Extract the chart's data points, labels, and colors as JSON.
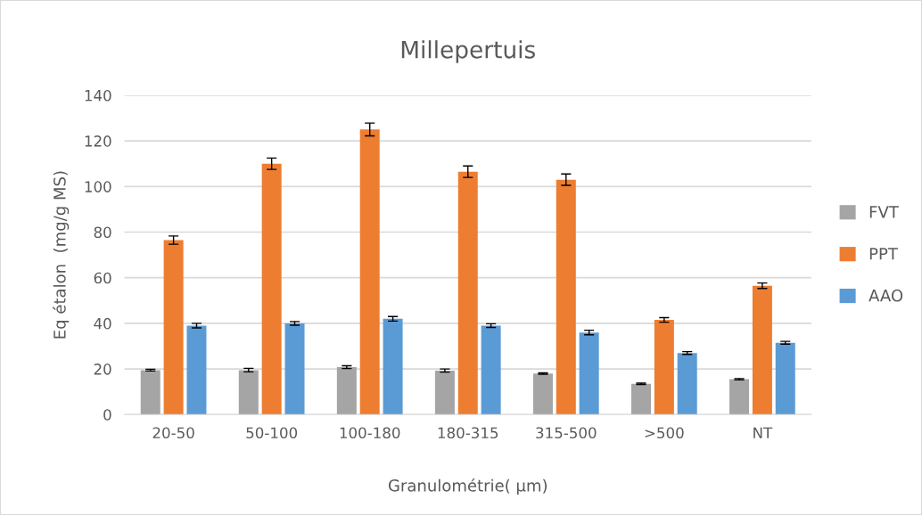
{
  "chart_data": {
    "type": "bar",
    "title": "Millepertuis",
    "xlabel": "Granulométrie( µm)",
    "ylabel": "Eq étalon  (mg/g MS)",
    "categories": [
      "20-50",
      "50-100",
      "100-180",
      "180-315",
      "315-500",
      ">500",
      "NT"
    ],
    "series": [
      {
        "name": "FVT",
        "color": "#a5a5a5",
        "values": [
          19.5,
          19.5,
          20.8,
          19.3,
          18,
          13.5,
          15.5
        ],
        "errors": [
          0.4,
          0.8,
          0.6,
          0.7,
          0.3,
          0.3,
          0.3
        ]
      },
      {
        "name": "PPT",
        "color": "#ed7d31",
        "values": [
          76.5,
          110,
          125,
          106.5,
          103,
          41.5,
          56.5
        ],
        "errors": [
          1.8,
          2.5,
          2.8,
          2.5,
          2.5,
          1,
          1.2
        ]
      },
      {
        "name": "AAO",
        "color": "#5b9bd5",
        "values": [
          39,
          40,
          42,
          39,
          36,
          27,
          31.5
        ],
        "errors": [
          1,
          0.8,
          1,
          0.8,
          1,
          0.6,
          0.6
        ]
      }
    ],
    "ylim": [
      0,
      140
    ],
    "yticks": [
      0,
      20,
      40,
      60,
      80,
      100,
      120,
      140
    ],
    "grid": "y",
    "legend": "right"
  }
}
